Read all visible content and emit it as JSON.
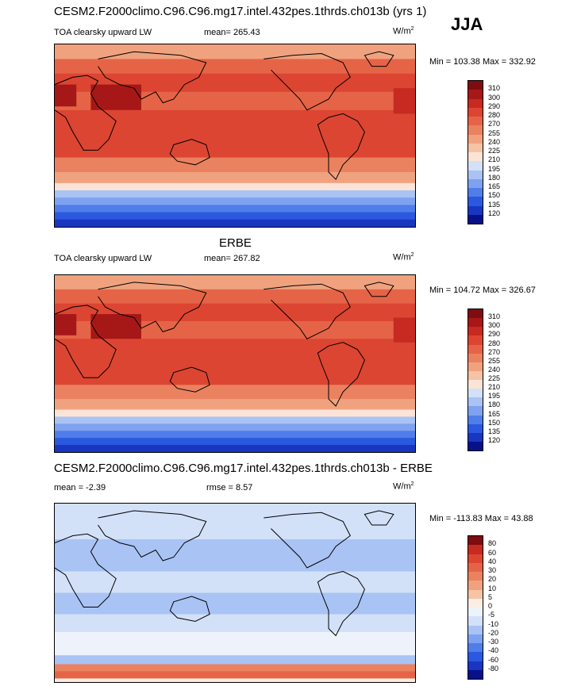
{
  "season": "JJA",
  "colors": {
    "abs_scale": [
      "#08118a",
      "#1836c0",
      "#2a58df",
      "#4f7ee9",
      "#7ea2ef",
      "#a9c3f4",
      "#d2e1f8",
      "#fbe4d6",
      "#f6c3a6",
      "#f0a27f",
      "#ea8260",
      "#e56447",
      "#dc4532",
      "#c62a20",
      "#a61817",
      "#7e0c10"
    ],
    "diff_scale": [
      "#08118a",
      "#1836c0",
      "#2a58df",
      "#4f7ee9",
      "#7ea2ef",
      "#a9c3f4",
      "#d2e1f8",
      "#eef3fb",
      "#fbeee6",
      "#f6c3a6",
      "#f0a27f",
      "#ea8260",
      "#e56447",
      "#dc4532",
      "#c62a20",
      "#7e0c10"
    ]
  },
  "chart_data": [
    {
      "type": "heatmap",
      "title": "CESM2.F2000climo.C96.C96.mg17.intel.432pes.1thrds.ch013b (yrs 1)",
      "variable": "TOA clearsky upward LW",
      "mean_label": "mean= 265.43",
      "units": "W/m",
      "units_exp": "2",
      "min_max_label": "Min = 103.38 Max = 332.92",
      "min": 103.38,
      "max": 332.92,
      "colorbar_levels": [
        "310",
        "300",
        "290",
        "280",
        "270",
        "255",
        "240",
        "225",
        "210",
        "195",
        "180",
        "165",
        "150",
        "135",
        "120"
      ]
    },
    {
      "type": "heatmap",
      "title": "ERBE",
      "variable": "TOA clearsky upward LW",
      "mean_label": "mean= 267.82",
      "units": "W/m",
      "units_exp": "2",
      "min_max_label": "Min = 104.72 Max = 326.67",
      "min": 104.72,
      "max": 326.67,
      "colorbar_levels": [
        "310",
        "300",
        "290",
        "280",
        "270",
        "255",
        "240",
        "225",
        "210",
        "195",
        "180",
        "165",
        "150",
        "135",
        "120"
      ]
    },
    {
      "type": "heatmap",
      "title": "CESM2.F2000climo.C96.C96.mg17.intel.432pes.1thrds.ch013b - ERBE",
      "mean_label": "mean =  -2.39",
      "rmse_label": "rmse =   8.57",
      "units": "W/m",
      "units_exp": "2",
      "min_max_label": "Min = -113.83 Max =  43.88",
      "min": -113.83,
      "max": 43.88,
      "colorbar_levels": [
        "80",
        "60",
        "40",
        "30",
        "20",
        "10",
        "5",
        "0",
        "-5",
        "-10",
        "-20",
        "-30",
        "-40",
        "-60",
        "-80"
      ]
    }
  ]
}
